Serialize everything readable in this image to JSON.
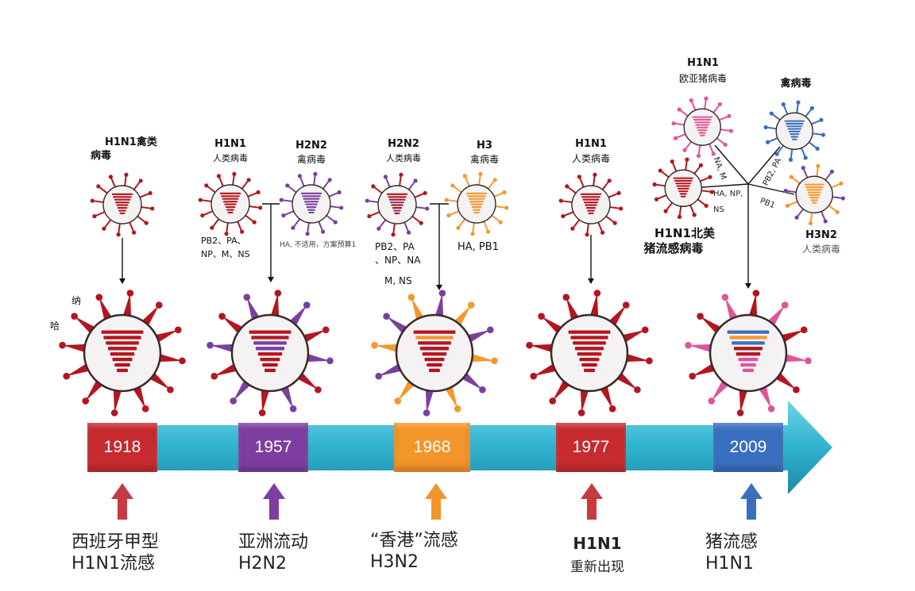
{
  "colors": {
    "red": "#b5151e",
    "purple": "#7b3fa0",
    "orange": "#f29a2e",
    "blue": "#3a6fbf",
    "pink": "#e0559a",
    "timeline": "#2fb3cf"
  },
  "top_labels": {
    "v1918": {
      "line1": "H1N1禽类",
      "line2": "病毒"
    },
    "v1957_a": {
      "line1": "H1N1",
      "line2": "人类病毒"
    },
    "v1957_b": {
      "line1": "H2N2",
      "line2": "禽病毒"
    },
    "v1968_a": {
      "line1": "H2N2",
      "line2": "人类病毒"
    },
    "v1968_b": {
      "line1": "H3",
      "line2": "禽病毒"
    },
    "v1977": {
      "line1": "H1N1",
      "line2": "人类病毒"
    },
    "v2009_top": {
      "line1": "H1N1",
      "line2": "欧亚猪病毒"
    },
    "v2009_avian": "禽病毒",
    "v2009_na": {
      "line1": "H1N1北美",
      "line2": "猪流感病毒"
    },
    "v2009_h3": {
      "line1": "H3N2",
      "line2": "人类病毒"
    }
  },
  "segment_labels": {
    "s1957_a": {
      "line1": "PB2、PA、",
      "line2": "NP、M、NS"
    },
    "s1957_b": "HA, 不适用，方案预算1",
    "s1968_a": {
      "line1": "PB2、PA",
      "line2": "、NP、NA"
    },
    "s1968_mns": "M, NS",
    "s1968_b": "HA, PB1",
    "s2009_nam": "NA, M",
    "s2009_hanp": "HA, NP,",
    "s2009_ns": "NS",
    "s2009_pb2": "PB2, PA",
    "s2009_pb1": "PB1"
  },
  "side_labels": {
    "na": "纳",
    "ha": "哈"
  },
  "years": [
    "1918",
    "1957",
    "1968",
    "1977",
    "2009"
  ],
  "captions": {
    "c1918": {
      "line1": "西班牙甲型",
      "line2": "H1N1流感"
    },
    "c1957": {
      "line1": "亚洲流动",
      "line2": "H2N2"
    },
    "c1968": {
      "line1": "“香港”流感",
      "line2": "H3N2"
    },
    "c1977": {
      "line1": "H1N1",
      "line2": "重新出现"
    },
    "c2009": {
      "line1": "猪流感",
      "line2": "H1N1"
    }
  }
}
